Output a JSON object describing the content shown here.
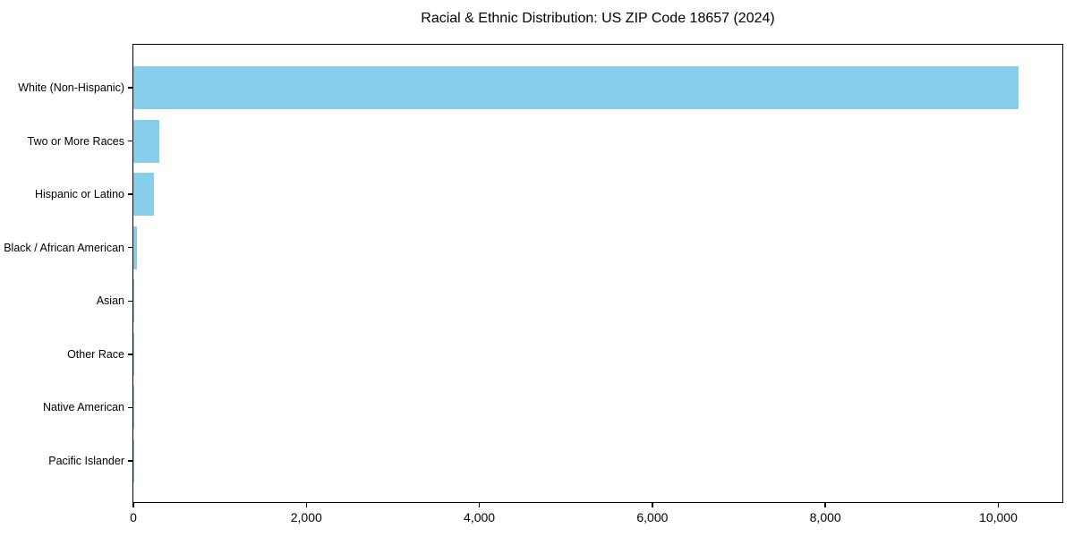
{
  "chart_data": {
    "type": "bar",
    "orientation": "horizontal",
    "title": "Racial & Ethnic Distribution: US ZIP Code 18657 (2024)",
    "xlabel": "",
    "ylabel": "",
    "categories": [
      "White (Non-Hispanic)",
      "Two or More Races",
      "Hispanic or Latino",
      "Black / African American",
      "Asian",
      "Other Race",
      "Native American",
      "Pacific Islander"
    ],
    "values": [
      10230,
      300,
      235,
      45,
      15,
      10,
      5,
      2
    ],
    "xlim": [
      0,
      10740
    ],
    "xticks": [
      0,
      2000,
      4000,
      6000,
      8000,
      10000
    ],
    "xtick_labels": [
      "0",
      "2,000",
      "4,000",
      "6,000",
      "8,000",
      "10,000"
    ],
    "bar_color": "#87CEEB",
    "grid": false,
    "legend": null,
    "sort": "descending"
  }
}
